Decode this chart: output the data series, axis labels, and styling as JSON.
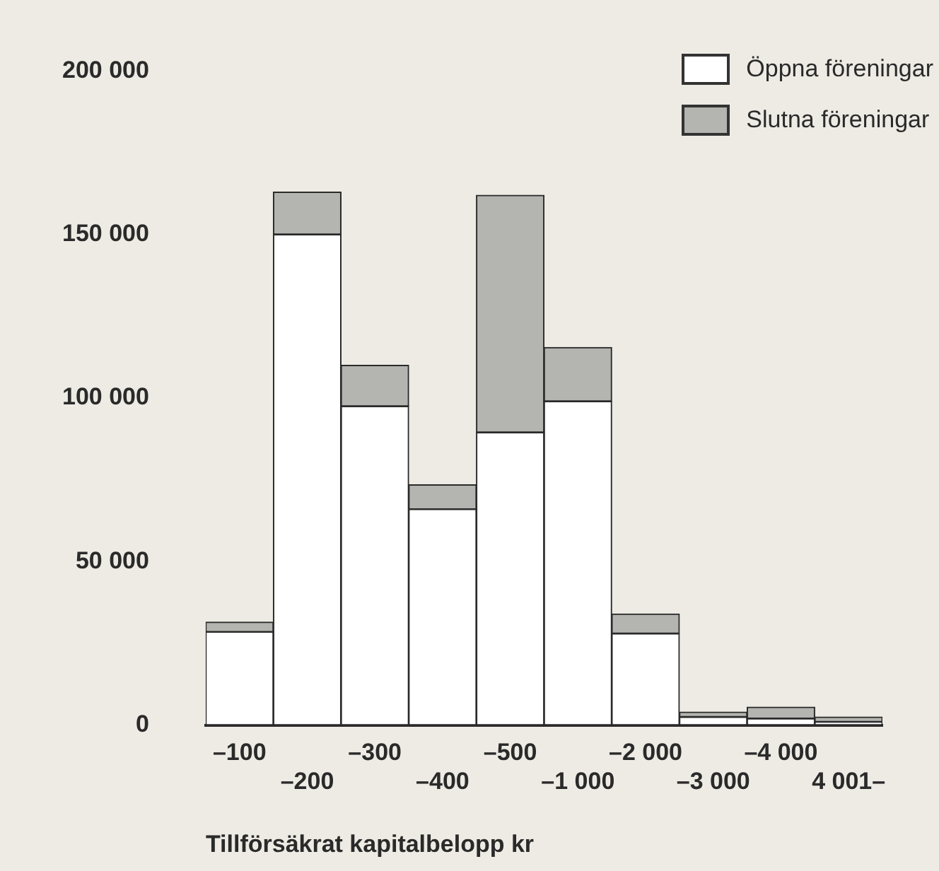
{
  "chart_data": {
    "type": "bar",
    "stacked": true,
    "xlabel": "Tillförsäkrat kapitalbelopp kr",
    "categories": [
      "–100",
      "–200",
      "–300",
      "–400",
      "–500",
      "–1 000",
      "–2 000",
      "–3 000",
      "–4 000",
      "4 001–"
    ],
    "series": [
      {
        "name": "Öppna föreningar",
        "color": "#ffffff",
        "values": [
          28500,
          150000,
          97500,
          66000,
          89500,
          99000,
          28000,
          2500,
          2000,
          1000
        ]
      },
      {
        "name": "Slutna föreningar",
        "color": "#b4b4b0",
        "values": [
          3000,
          13000,
          12500,
          7500,
          72500,
          16500,
          6000,
          1500,
          3500,
          1500
        ]
      }
    ],
    "ylim": [
      0,
      200000
    ],
    "yticks": [
      {
        "value": 0,
        "label": "0"
      },
      {
        "value": 50000,
        "label": "50 000"
      },
      {
        "value": 100000,
        "label": "100 000"
      },
      {
        "value": 150000,
        "label": "150 000"
      },
      {
        "value": 200000,
        "label": "200 000"
      }
    ],
    "grid": false,
    "legend": "top right"
  }
}
